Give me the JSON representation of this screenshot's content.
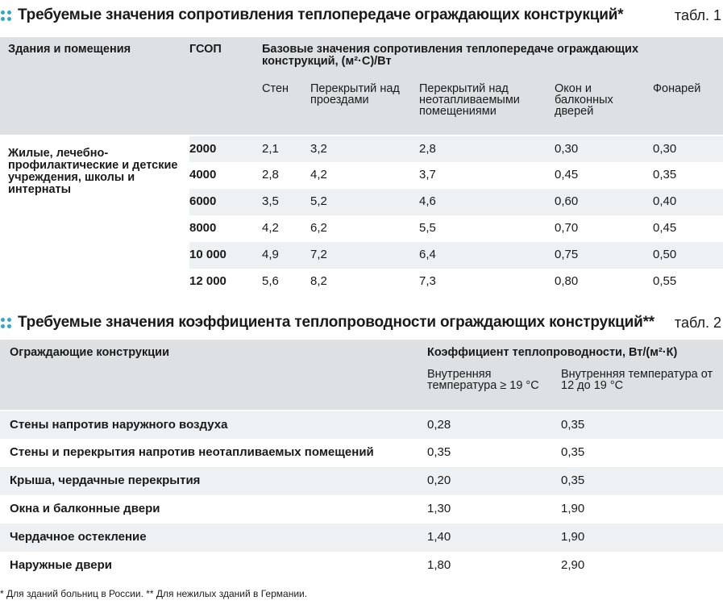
{
  "table1": {
    "title": "Требуемые значения сопротивления теплопередаче ограждающих конструкций*",
    "label": "табл. 1",
    "col_building": "Здания и помещения",
    "col_gsop": "ГСОП",
    "col_group": "Базовые значения сопротивления теплопередаче ограждающих конструкций, (м²·С)/Вт",
    "sub_headers": [
      "Стен",
      "Перекрытий над проездами",
      "Перекрытий над неотапливаемыми помещениями",
      "Окон и балконных дверей",
      "Фонарей"
    ],
    "building_label": "Жилые, лечебно-профилактические и детские учреждения, школы и интернаты",
    "rows": [
      {
        "gsop": "2000",
        "values": [
          "2,1",
          "3,2",
          "2,8",
          "0,30",
          "0,30"
        ]
      },
      {
        "gsop": "4000",
        "values": [
          "2,8",
          "4,2",
          "3,7",
          "0,45",
          "0,35"
        ]
      },
      {
        "gsop": "6000",
        "values": [
          "3,5",
          "5,2",
          "4,6",
          "0,60",
          "0,40"
        ]
      },
      {
        "gsop": "8000",
        "values": [
          "4,2",
          "6,2",
          "5,5",
          "0,70",
          "0,45"
        ]
      },
      {
        "gsop": "10 000",
        "values": [
          "4,9",
          "7,2",
          "6,4",
          "0,75",
          "0,50"
        ]
      },
      {
        "gsop": "12 000",
        "values": [
          "5,6",
          "8,2",
          "7,3",
          "0,80",
          "0,55"
        ]
      }
    ]
  },
  "table2": {
    "title": "Требуемые значения коэффициента теплопроводности ограждающих конструкций**",
    "label": "табл. 2",
    "col_construction": "Ограждающие конструкции",
    "col_group": "Коэффициент теплопроводности, Вт/(м²·К)",
    "sub_headers": [
      "Внутренняя температура ≥ 19 °С",
      "Внутренняя температура от 12 до 19 °С"
    ],
    "rows": [
      {
        "name": "Стены напротив наружного воздуха",
        "values": [
          "0,28",
          "0,35"
        ]
      },
      {
        "name": "Стены и перекрытия напротив неотапливаемых помещений",
        "values": [
          "0,35",
          "0,35"
        ]
      },
      {
        "name": "Крыша, чердачные перекрытия",
        "values": [
          "0,20",
          "0,35"
        ]
      },
      {
        "name": "Окна и балконные двери",
        "values": [
          "1,30",
          "1,90"
        ]
      },
      {
        "name": "Чердачное остекление",
        "values": [
          "1,40",
          "1,90"
        ]
      },
      {
        "name": "Наружные двери",
        "values": [
          "1,80",
          "2,90"
        ]
      }
    ]
  },
  "footnote": "* Для зданий больниц в России.  ** Для нежилых зданий в Германии.",
  "colors": {
    "accent": "#2fa8c8",
    "header_bg": "#dde1e4",
    "row_bg": "#eef1f3"
  }
}
